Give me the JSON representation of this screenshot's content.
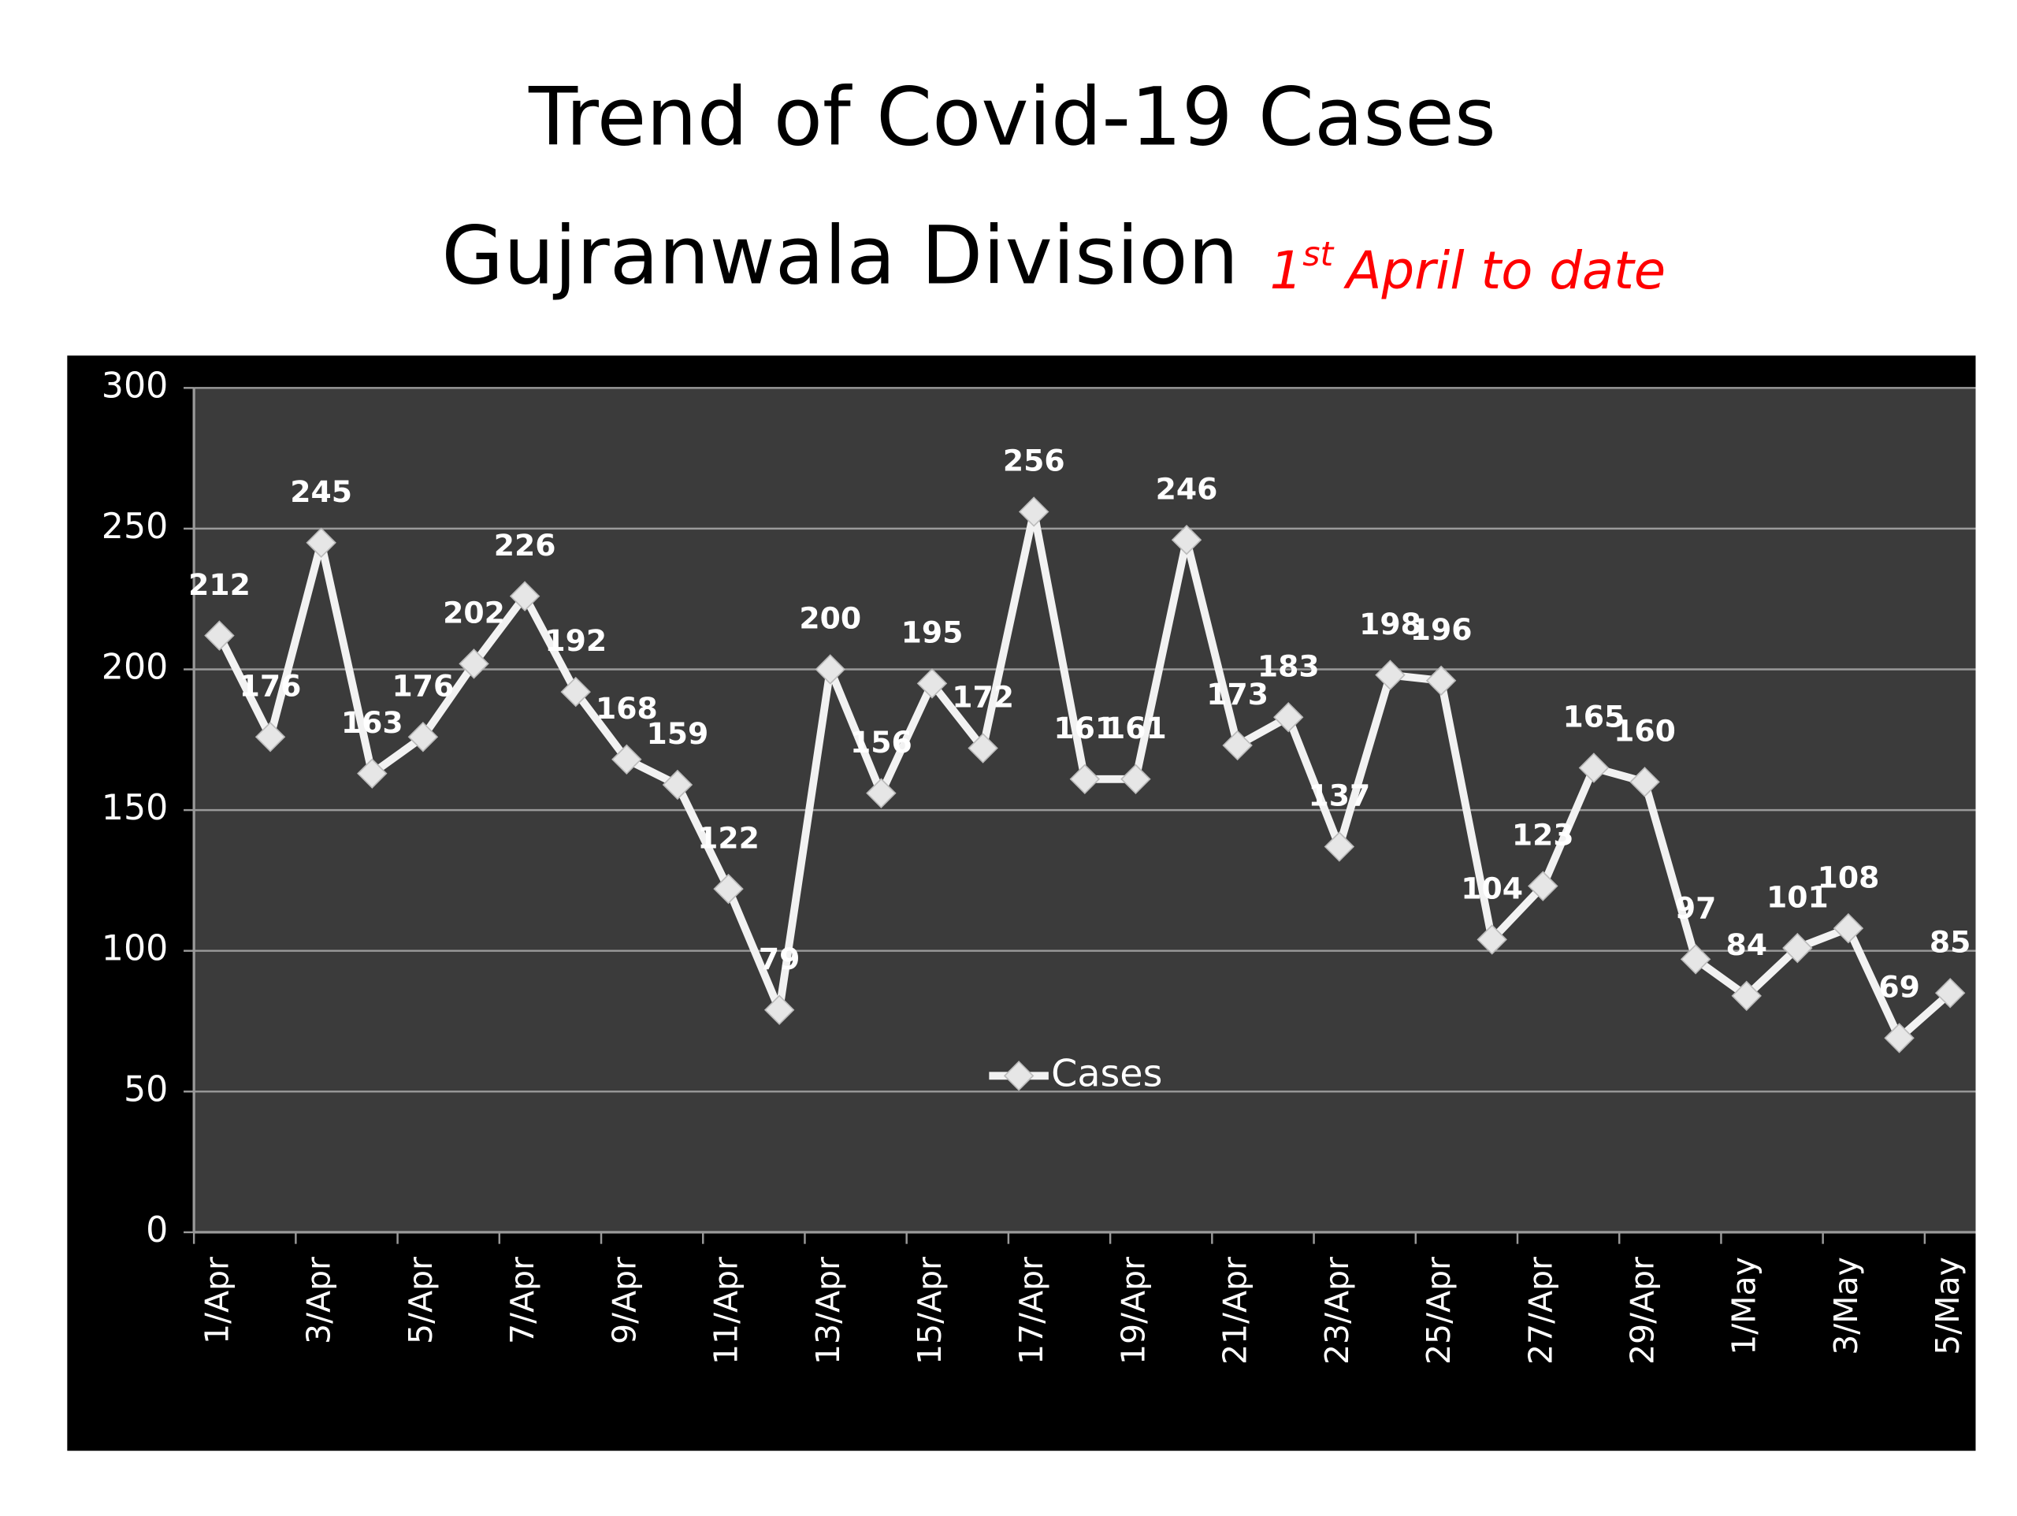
{
  "chart_data": {
    "type": "line",
    "title": [
      "Trend of Covid-19 Cases",
      "Gujranwala Division"
    ],
    "subtitle": [
      "1",
      "st",
      "April to date"
    ],
    "categories": [
      "1/Apr",
      null,
      "3/Apr",
      null,
      "5/Apr",
      null,
      "7/Apr",
      null,
      "9/Apr",
      null,
      "11/Apr",
      null,
      "13/Apr",
      null,
      "15/Apr",
      null,
      "17/Apr",
      null,
      "19/Apr",
      null,
      "21/Apr",
      null,
      "23/Apr",
      null,
      "25/Apr",
      null,
      "27/Apr",
      null,
      "29/Apr",
      null,
      "1/May",
      null,
      "3/May",
      null,
      "5/May"
    ],
    "series": [
      {
        "name": "Cases",
        "color": "#f2f2f2",
        "values": [
          212,
          176,
          245,
          163,
          176,
          202,
          226,
          192,
          168,
          159,
          122,
          79,
          200,
          156,
          195,
          172,
          256,
          161,
          161,
          246,
          173,
          183,
          137,
          198,
          196,
          104,
          123,
          165,
          160,
          97,
          84,
          101,
          108,
          69,
          85
        ]
      }
    ],
    "ylim": [
      0,
      300
    ],
    "yticks": [
      0,
      50,
      100,
      150,
      200,
      250,
      300
    ],
    "grid": true,
    "legend": "center",
    "data_labels": true
  }
}
